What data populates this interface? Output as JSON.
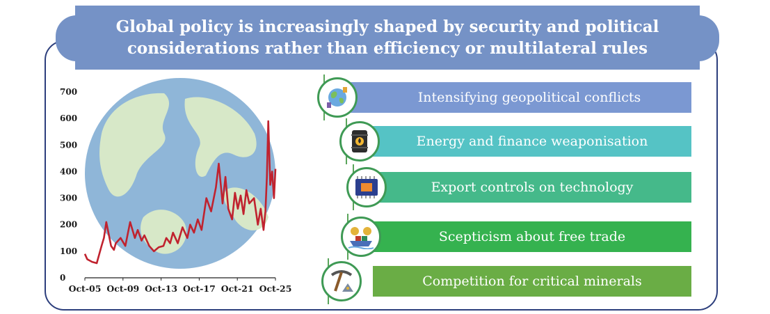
{
  "banner": {
    "title": "Global policy is increasingly shaped by security and political\nconsiderations rather than efficiency or multilateral rules"
  },
  "colors": {
    "banner": "#7592c6",
    "frame": "#2c3e7c",
    "line": "#c0222e",
    "globe_ocean": "#8fb6d8",
    "globe_land": "#d7e8c8"
  },
  "chart_data": {
    "type": "line",
    "title": "",
    "xlabel": "",
    "ylabel": "",
    "ylim": [
      0,
      700
    ],
    "yticks": [
      "0",
      "100",
      "200",
      "300",
      "400",
      "500",
      "600",
      "700"
    ],
    "xticks": [
      "Oct-05",
      "Oct-09",
      "Oct-13",
      "Oct-17",
      "Oct-21",
      "Oct-25"
    ],
    "grid": false,
    "series": [
      {
        "x": [
          2005.75,
          2006.0,
          2006.5,
          2007.0,
          2007.5,
          2007.75,
          2008.0,
          2008.5,
          2008.8,
          2009.0,
          2009.5,
          2010.0,
          2010.5,
          2011.0,
          2011.3,
          2011.7,
          2012.0,
          2012.5,
          2013.0,
          2013.5,
          2014.0,
          2014.3,
          2014.7,
          2015.0,
          2015.5,
          2016.0,
          2016.5,
          2016.8,
          2017.2,
          2017.6,
          2018.0,
          2018.5,
          2019.0,
          2019.5,
          2019.8,
          2020.2,
          2020.5,
          2020.8,
          2021.2,
          2021.5,
          2021.8,
          2022.1,
          2022.4,
          2022.7,
          2023.0,
          2023.5,
          2023.9,
          2024.2,
          2024.5,
          2024.7,
          2024.85,
          2025.0,
          2025.2,
          2025.4,
          2025.6,
          2025.75
        ],
        "values": [
          90,
          70,
          60,
          55,
          120,
          150,
          210,
          120,
          105,
          130,
          150,
          120,
          210,
          150,
          180,
          140,
          160,
          120,
          100,
          115,
          120,
          150,
          130,
          170,
          130,
          190,
          150,
          200,
          170,
          220,
          180,
          300,
          250,
          340,
          430,
          280,
          380,
          260,
          220,
          320,
          260,
          310,
          240,
          330,
          280,
          300,
          200,
          260,
          180,
          250,
          380,
          590,
          350,
          400,
          300,
          410
        ]
      }
    ]
  },
  "items": [
    {
      "label": "Intensifying geopolitical conflicts",
      "color": "#7b98d2",
      "icon": "globe-chess-icon"
    },
    {
      "label": "Energy and finance weaponisation",
      "color": "#55c3c5",
      "icon": "oil-barrel-icon"
    },
    {
      "label": "Export controls on technology",
      "color": "#45b98a",
      "icon": "microchip-icon"
    },
    {
      "label": "Scepticism about free trade",
      "color": "#35b24f",
      "icon": "trade-ship-icon"
    },
    {
      "label": "Competition for critical minerals",
      "color": "#6aad45",
      "icon": "pickaxe-icon"
    }
  ]
}
